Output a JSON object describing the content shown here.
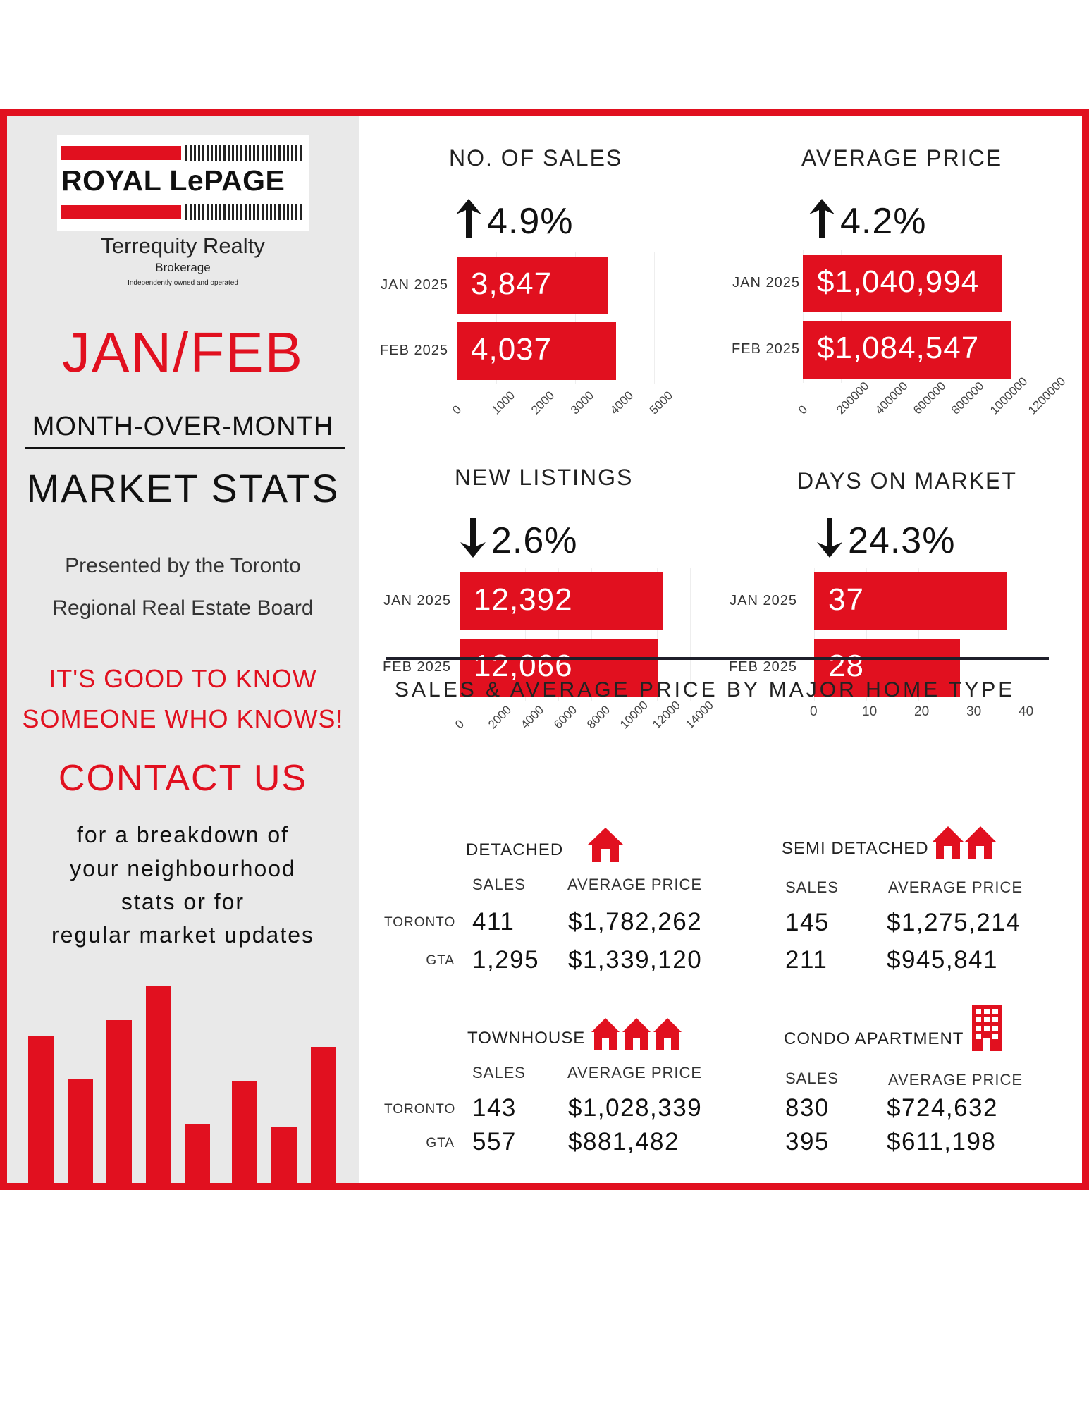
{
  "brand": {
    "logo_text": "ROYAL LePAGE",
    "company": "Terrequity Realty",
    "type": "Brokerage",
    "tagline": "Independently owned and operated"
  },
  "left": {
    "period": "JAN/FEB",
    "subtitle": "MONTH-OVER-MONTH ",
    "title": "MARKET STATS",
    "presented_line1": "Presented by the Toronto",
    "presented_line2": "Regional Real Estate Board",
    "slogan_line1": "IT'S GOOD TO KNOW",
    "slogan_line2": "SOMEONE WHO KNOWS!",
    "contact": "CONTACT US",
    "cta_line1": "for a breakdown of",
    "cta_line2": "your neighbourhood",
    "cta_line3": "stats or for",
    "cta_line4": "regular market updates",
    "decor_bar_levels": [
      0.55,
      0.39,
      0.61,
      0.74,
      0.22,
      0.38,
      0.21,
      0.51
    ]
  },
  "chart_data": [
    {
      "type": "bar",
      "title": "NO. OF SALES",
      "change": "4.9%",
      "direction": "up",
      "categories": [
        "JAN 2025",
        "FEB 2025"
      ],
      "values": [
        3847,
        4037
      ],
      "labels": [
        "3,847",
        "4,037"
      ],
      "xlim": [
        0,
        5000
      ],
      "ticks": [
        "0",
        "1000",
        "2000",
        "3000",
        "4000",
        "5000"
      ],
      "color": "#e1101f"
    },
    {
      "type": "bar",
      "title": "AVERAGE PRICE",
      "change": "4.2%",
      "direction": "up",
      "categories": [
        "JAN 2025",
        "FEB 2025"
      ],
      "values": [
        1040994,
        1084547
      ],
      "labels": [
        "$1,040,994",
        "$1,084,547"
      ],
      "xlim": [
        0,
        1200000
      ],
      "ticks": [
        "0",
        "200000",
        "400000",
        "600000",
        "800000",
        "1000000",
        "1200000"
      ],
      "color": "#e1101f"
    },
    {
      "type": "bar",
      "title": "NEW LISTINGS",
      "change": "2.6%",
      "direction": "down",
      "categories": [
        "JAN 2025",
        "FEB 2025"
      ],
      "values": [
        12392,
        12066
      ],
      "labels": [
        "12,392",
        "12,066"
      ],
      "xlim": [
        0,
        14000
      ],
      "ticks": [
        "0",
        "2000",
        "4000",
        "6000",
        "8000",
        "10000",
        "12000",
        "14000"
      ],
      "color": "#e1101f"
    },
    {
      "type": "bar",
      "title": "DAYS ON MARKET",
      "change": "24.3%",
      "direction": "down",
      "categories": [
        "JAN 2025",
        "FEB 2025"
      ],
      "values": [
        37,
        28
      ],
      "labels": [
        "37",
        "28"
      ],
      "xlim": [
        0,
        40
      ],
      "ticks": [
        "0",
        "10",
        "20",
        "30",
        "40"
      ],
      "color": "#e1101f"
    }
  ],
  "home_types": {
    "title": "SALES & AVERAGE PRICE BY MAJOR HOME TYPE",
    "sales_header": "SALES",
    "price_header": "AVERAGE PRICE",
    "regions": [
      "TORONTO",
      "GTA"
    ],
    "types": [
      {
        "name": "DETACHED",
        "icon": "house-icon",
        "rows": [
          {
            "sales": "411",
            "price": "$1,782,262"
          },
          {
            "sales": "1,295",
            "price": "$1,339,120"
          }
        ]
      },
      {
        "name": "SEMI DETACHED",
        "icon": "semi-detached-icon",
        "rows": [
          {
            "sales": "145",
            "price": "$1,275,214"
          },
          {
            "sales": "211",
            "price": "$945,841"
          }
        ]
      },
      {
        "name": "TOWNHOUSE",
        "icon": "townhouse-icon",
        "rows": [
          {
            "sales": "143",
            "price": "$1,028,339"
          },
          {
            "sales": "557",
            "price": "$881,482"
          }
        ]
      },
      {
        "name": "CONDO APARTMENT",
        "icon": "condo-building-icon",
        "rows": [
          {
            "sales": "830",
            "price": "$724,632"
          },
          {
            "sales": "395",
            "price": "$611,198"
          }
        ]
      }
    ]
  }
}
